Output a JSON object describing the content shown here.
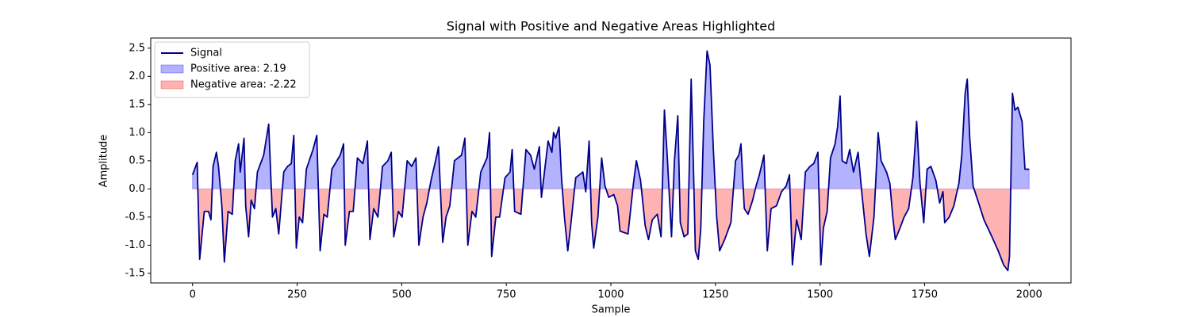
{
  "chart_data": {
    "type": "line",
    "title": "Signal with Positive and Negative Areas Highlighted",
    "xlabel": "Sample",
    "ylabel": "Amplitude",
    "xlim": [
      -100,
      2100
    ],
    "xticks": [
      0,
      250,
      500,
      750,
      1000,
      1250,
      1500,
      1750,
      2000
    ],
    "ylim": [
      -1.67,
      2.68
    ],
    "yticks": [
      -1.5,
      {
        "value": -1,
        "label": "-1.0"
      },
      -0.5,
      {
        "value": 0,
        "label": "0.0"
      },
      0.5,
      {
        "value": 1,
        "label": "1.0"
      },
      1.5,
      {
        "value": 2,
        "label": "2.0"
      },
      2.5
    ],
    "grid": false,
    "legend": "upper left",
    "series": [
      {
        "name": "Signal",
        "color": "#00008b",
        "x": [
          0,
          11,
          17,
          28,
          38,
          44,
          49,
          57,
          62,
          70,
          76,
          85,
          95,
          102,
          110,
          114,
          123,
          127,
          134,
          140,
          148,
          155,
          170,
          182,
          191,
          199,
          206,
          218,
          227,
          236,
          242,
          248,
          255,
          263,
          272,
          288,
          297,
          305,
          314,
          322,
          333,
          353,
          361,
          365,
          375,
          384,
          394,
          407,
          418,
          424,
          433,
          443,
          454,
          467,
          475,
          481,
          492,
          501,
          513,
          524,
          534,
          541,
          551,
          560,
          570,
          584,
          588,
          598,
          606,
          615,
          626,
          643,
          651,
          658,
          668,
          677,
          689,
          704,
          710,
          715,
          725,
          734,
          747,
          759,
          764,
          770,
          785,
          797,
          808,
          817,
          829,
          834,
          850,
          859,
          863,
          868,
          876,
          882,
          889,
          897,
          904,
          916,
          933,
          940,
          948,
          954,
          959,
          969,
          978,
          986,
          995,
          1007,
          1016,
          1022,
          1041,
          1054,
          1061,
          1071,
          1082,
          1090,
          1099,
          1111,
          1120,
          1128,
          1135,
          1145,
          1152,
          1160,
          1166,
          1175,
          1184,
          1192,
          1198,
          1202,
          1209,
          1215,
          1222,
          1230,
          1237,
          1245,
          1253,
          1260,
          1272,
          1287,
          1298,
          1306,
          1311,
          1319,
          1328,
          1339,
          1347,
          1355,
          1366,
          1374,
          1383,
          1396,
          1408,
          1419,
          1427,
          1434,
          1444,
          1455,
          1465,
          1476,
          1485,
          1495,
          1502,
          1508,
          1517,
          1525,
          1536,
          1542,
          1548,
          1553,
          1563,
          1571,
          1580,
          1591,
          1601,
          1610,
          1618,
          1629,
          1639,
          1646,
          1659,
          1667,
          1674,
          1680,
          1691,
          1701,
          1712,
          1722,
          1731,
          1739,
          1748,
          1756,
          1765,
          1777,
          1786,
          1794,
          1798,
          1809,
          1820,
          1832,
          1839,
          1847,
          1852,
          1858,
          1866,
          1877,
          1892,
          1911,
          1926,
          1939,
          1949,
          1953,
          1960,
          1966,
          1973,
          1983,
          1990,
          2000
        ],
        "values": [
          0.25,
          0.47,
          -1.25,
          -0.4,
          -0.4,
          -0.55,
          0.4,
          0.65,
          0.4,
          -0.3,
          -1.3,
          -0.4,
          -0.45,
          0.5,
          0.8,
          0.3,
          0.9,
          -0.3,
          -0.85,
          -0.2,
          -0.35,
          0.3,
          0.6,
          1.15,
          -0.5,
          -0.35,
          -0.8,
          0.3,
          0.4,
          0.45,
          0.95,
          -1.05,
          -0.5,
          -0.6,
          0.35,
          0.7,
          0.95,
          -1.1,
          -0.45,
          -0.5,
          0.35,
          0.6,
          0.8,
          -1.0,
          -0.4,
          -0.4,
          0.55,
          0.45,
          0.85,
          -0.9,
          -0.35,
          -0.5,
          0.4,
          0.5,
          0.65,
          -0.85,
          -0.4,
          -0.5,
          0.5,
          0.4,
          0.55,
          -1.0,
          -0.5,
          -0.25,
          0.15,
          0.6,
          0.75,
          -0.95,
          -0.5,
          -0.3,
          0.5,
          0.6,
          0.9,
          -1.0,
          -0.4,
          -0.5,
          0.3,
          0.55,
          1.0,
          -1.2,
          -0.5,
          -0.5,
          0.2,
          0.3,
          0.7,
          -0.4,
          -0.45,
          0.7,
          0.6,
          0.35,
          0.75,
          -0.15,
          0.85,
          0.65,
          1.0,
          0.9,
          1.1,
          0.2,
          -0.5,
          -1.1,
          -0.65,
          0.2,
          0.3,
          -0.05,
          0.85,
          -0.6,
          -1.05,
          -0.5,
          0.55,
          0.05,
          -0.15,
          -0.1,
          -0.3,
          -0.75,
          -0.8,
          0.1,
          0.5,
          0.15,
          -0.65,
          -0.9,
          -0.55,
          -0.45,
          -0.85,
          1.4,
          0.55,
          -0.85,
          0.5,
          1.3,
          -0.6,
          -0.85,
          -0.8,
          1.95,
          0.2,
          -1.1,
          -1.25,
          -0.7,
          1.2,
          2.45,
          2.2,
          0.7,
          -0.5,
          -1.1,
          -0.9,
          -0.6,
          0.5,
          0.6,
          0.8,
          -0.35,
          -0.45,
          -0.2,
          0.05,
          0.25,
          0.6,
          -1.1,
          -0.35,
          -0.3,
          -0.05,
          0.05,
          0.25,
          -1.35,
          -0.55,
          -0.9,
          0.3,
          0.4,
          0.45,
          0.65,
          -1.35,
          -0.7,
          -0.4,
          0.55,
          0.8,
          1.1,
          1.65,
          0.5,
          0.45,
          0.7,
          0.3,
          0.65,
          -0.15,
          -0.8,
          -1.2,
          -0.5,
          1.0,
          0.5,
          0.3,
          0.1,
          -0.5,
          -0.9,
          -0.7,
          -0.5,
          -0.35,
          0.2,
          1.2,
          0.1,
          -0.6,
          0.35,
          0.4,
          0.15,
          -0.25,
          -0.05,
          -0.6,
          -0.5,
          -0.3,
          0.1,
          0.6,
          1.7,
          1.95,
          0.9,
          0.05,
          -0.2,
          -0.55,
          -0.85,
          -1.1,
          -1.35,
          -1.45,
          -1.2,
          1.7,
          1.4,
          1.45,
          1.2,
          0.35,
          0.35
        ]
      }
    ],
    "areas": [
      {
        "name": "Positive area: 2.19",
        "color": "blue",
        "opacity": 0.3,
        "side": "positive",
        "series": 0
      },
      {
        "name": "Negative area: -2.22",
        "color": "red",
        "opacity": 0.3,
        "side": "negative",
        "series": 0
      }
    ]
  }
}
